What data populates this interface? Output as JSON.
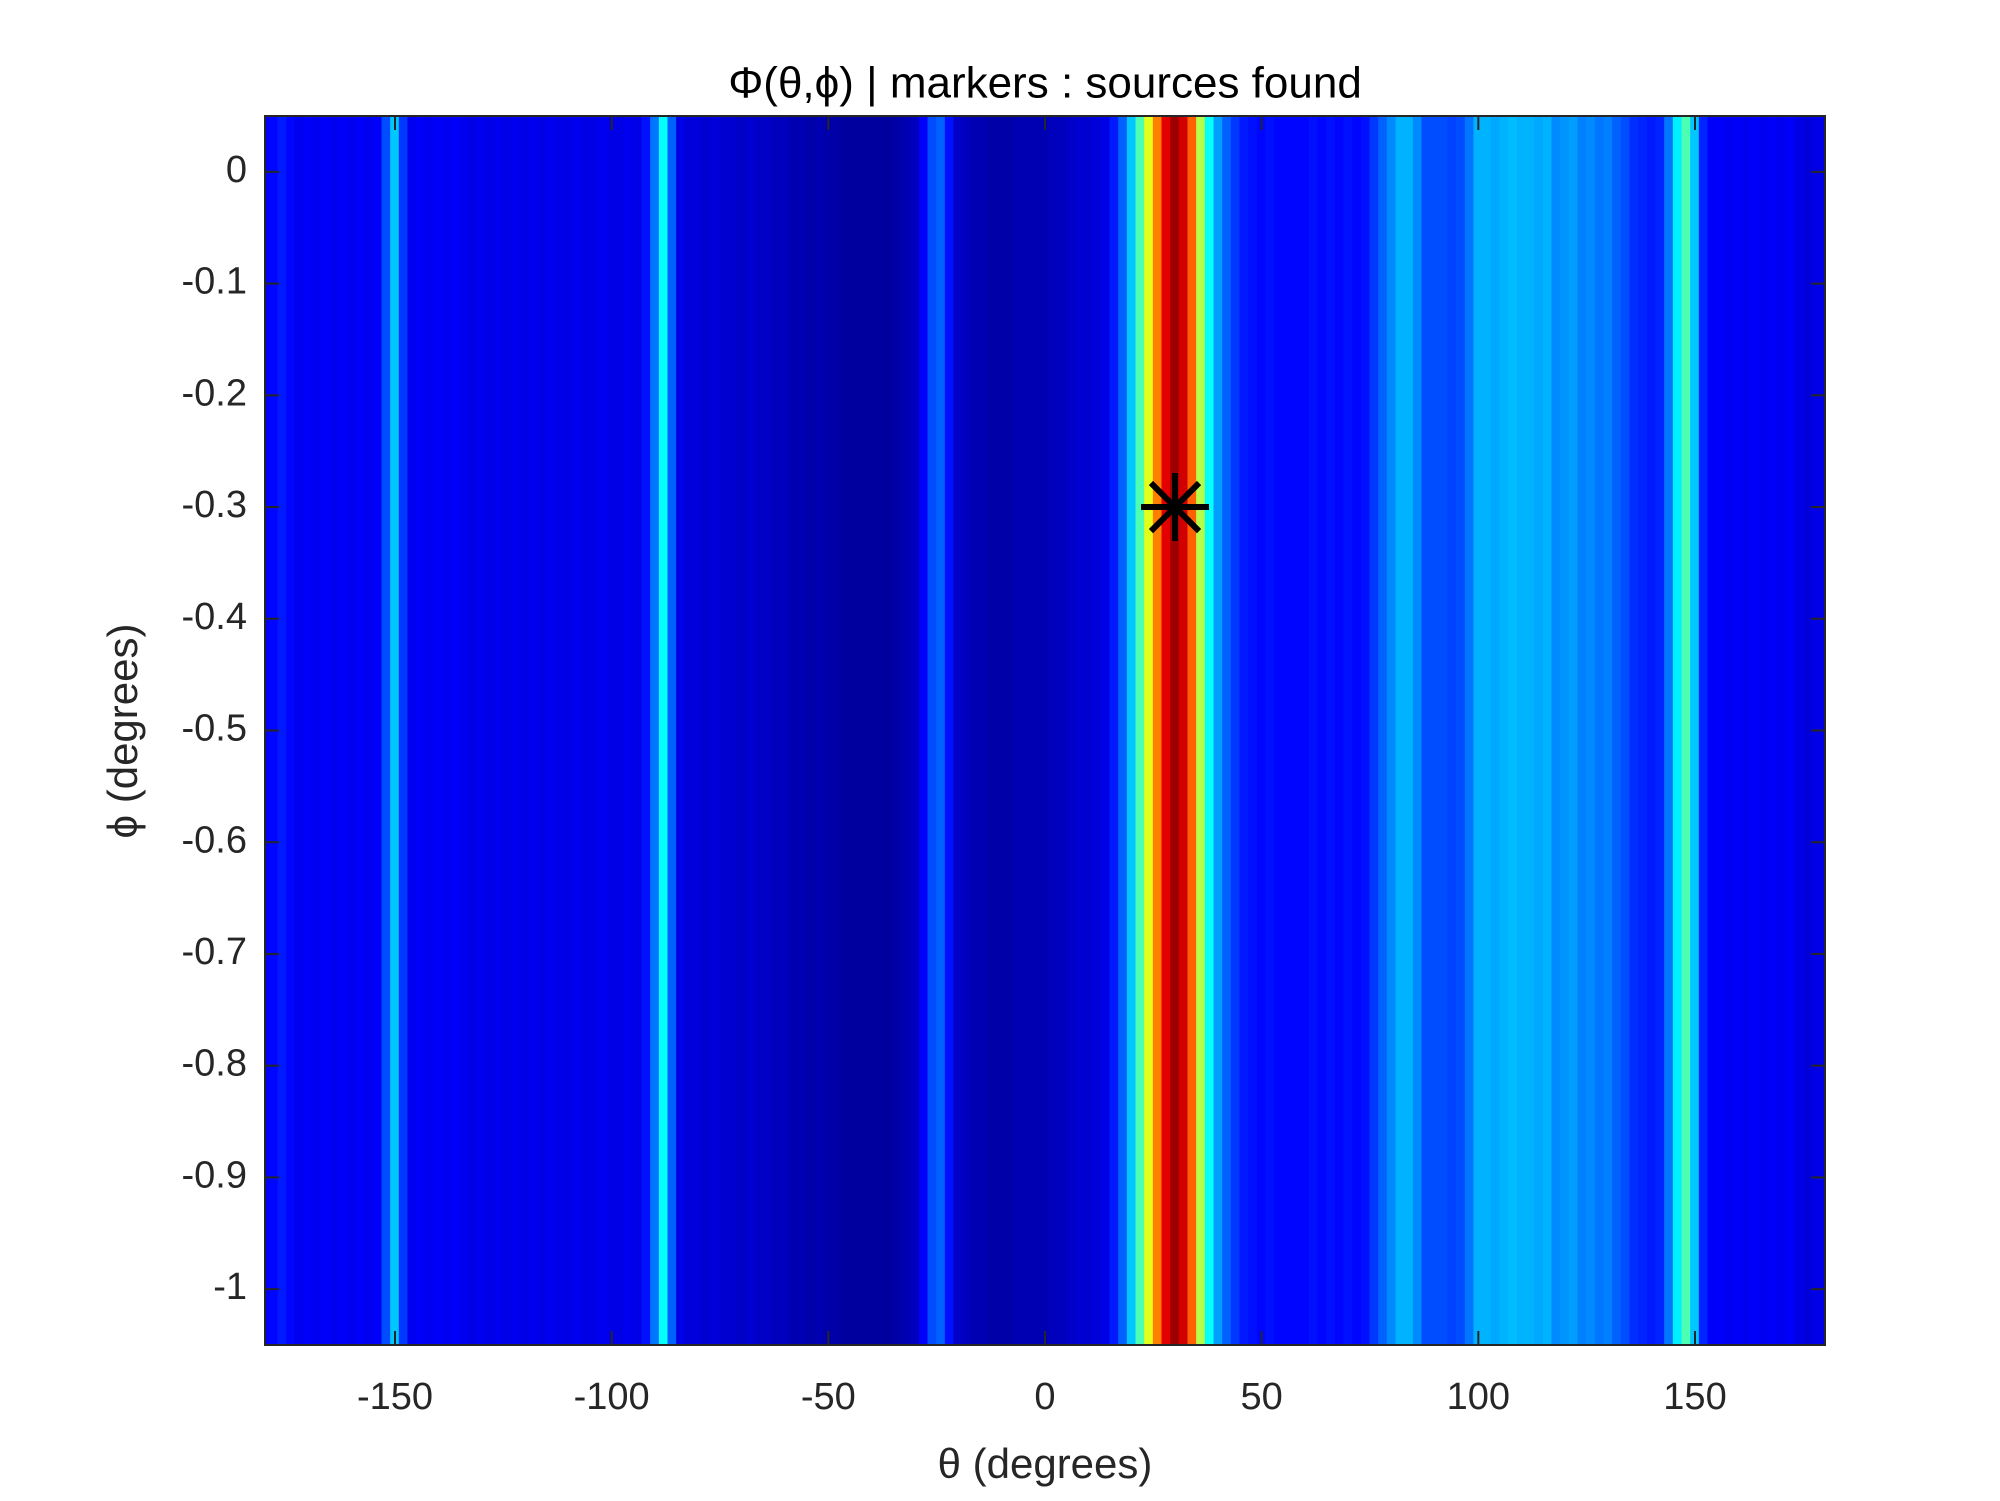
{
  "chart_data": {
    "type": "heatmap",
    "title": "Φ(θ,ϕ)   |  markers : sources found",
    "xlabel": "θ (degrees)",
    "ylabel": "ϕ (degrees)",
    "xlim": [
      -180,
      180
    ],
    "ylim": [
      -1.05,
      0.05
    ],
    "xticks": [
      -150,
      -100,
      -50,
      0,
      50,
      100,
      150
    ],
    "yticks": [
      -1,
      -0.9,
      -0.8,
      -0.7,
      -0.6,
      -0.5,
      -0.4,
      -0.3,
      -0.2,
      -0.1,
      0
    ],
    "colormap": "jet",
    "x": [
      -180,
      -178,
      -176,
      -174,
      -172,
      -170,
      -168,
      -166,
      -164,
      -162,
      -160,
      -158,
      -156,
      -154,
      -152,
      -150,
      -148,
      -146,
      -144,
      -142,
      -140,
      -138,
      -136,
      -134,
      -132,
      -130,
      -128,
      -126,
      -124,
      -122,
      -120,
      -118,
      -116,
      -114,
      -112,
      -110,
      -108,
      -106,
      -104,
      -102,
      -100,
      -98,
      -96,
      -94,
      -92,
      -90,
      -88,
      -86,
      -84,
      -82,
      -80,
      -78,
      -76,
      -74,
      -72,
      -70,
      -68,
      -66,
      -64,
      -62,
      -60,
      -58,
      -56,
      -54,
      -52,
      -50,
      -48,
      -46,
      -44,
      -42,
      -40,
      -38,
      -36,
      -34,
      -32,
      -30,
      -28,
      -26,
      -24,
      -22,
      -20,
      -18,
      -16,
      -14,
      -12,
      -10,
      -8,
      -6,
      -4,
      -2,
      0,
      2,
      4,
      6,
      8,
      10,
      12,
      14,
      16,
      18,
      20,
      22,
      24,
      26,
      28,
      30,
      32,
      34,
      36,
      38,
      40,
      42,
      44,
      46,
      48,
      50,
      52,
      54,
      56,
      58,
      60,
      62,
      64,
      66,
      68,
      70,
      72,
      74,
      76,
      78,
      80,
      82,
      84,
      86,
      88,
      90,
      92,
      94,
      96,
      98,
      100,
      102,
      104,
      106,
      108,
      110,
      112,
      114,
      116,
      118,
      120,
      122,
      124,
      126,
      128,
      130,
      132,
      134,
      136,
      138,
      140,
      142,
      144,
      146,
      148,
      150,
      152,
      154,
      156,
      158,
      160,
      162,
      164,
      166,
      168,
      170,
      172,
      174,
      176,
      178,
      180
    ],
    "values": [
      0.12,
      0.13,
      0.15,
      0.13,
      0.11,
      0.12,
      0.11,
      0.12,
      0.11,
      0.12,
      0.11,
      0.12,
      0.11,
      0.12,
      0.2,
      0.32,
      0.18,
      0.11,
      0.12,
      0.11,
      0.12,
      0.11,
      0.12,
      0.11,
      0.1,
      0.11,
      0.1,
      0.11,
      0.1,
      0.11,
      0.1,
      0.11,
      0.1,
      0.11,
      0.1,
      0.1,
      0.11,
      0.1,
      0.1,
      0.11,
      0.1,
      0.1,
      0.11,
      0.1,
      0.14,
      0.24,
      0.38,
      0.22,
      0.1,
      0.09,
      0.09,
      0.08,
      0.09,
      0.08,
      0.08,
      0.07,
      0.08,
      0.07,
      0.07,
      0.06,
      0.06,
      0.05,
      0.05,
      0.04,
      0.05,
      0.04,
      0.04,
      0.03,
      0.03,
      0.03,
      0.03,
      0.03,
      0.03,
      0.04,
      0.05,
      0.06,
      0.12,
      0.2,
      0.22,
      0.14,
      0.07,
      0.06,
      0.05,
      0.05,
      0.04,
      0.04,
      0.04,
      0.05,
      0.05,
      0.05,
      0.05,
      0.06,
      0.06,
      0.07,
      0.08,
      0.08,
      0.09,
      0.1,
      0.15,
      0.22,
      0.32,
      0.45,
      0.6,
      0.75,
      0.9,
      0.97,
      0.92,
      0.78,
      0.55,
      0.38,
      0.28,
      0.22,
      0.18,
      0.15,
      0.14,
      0.13,
      0.14,
      0.13,
      0.13,
      0.13,
      0.13,
      0.14,
      0.13,
      0.14,
      0.13,
      0.14,
      0.13,
      0.14,
      0.18,
      0.22,
      0.26,
      0.3,
      0.3,
      0.26,
      0.2,
      0.2,
      0.2,
      0.19,
      0.2,
      0.24,
      0.3,
      0.3,
      0.29,
      0.3,
      0.31,
      0.3,
      0.3,
      0.29,
      0.3,
      0.26,
      0.27,
      0.28,
      0.25,
      0.26,
      0.24,
      0.25,
      0.22,
      0.2,
      0.17,
      0.16,
      0.15,
      0.16,
      0.24,
      0.36,
      0.45,
      0.32,
      0.16,
      0.12,
      0.12,
      0.11,
      0.12,
      0.11,
      0.12,
      0.11,
      0.12,
      0.11,
      0.12,
      0.1,
      0.09,
      0.1,
      0.1
    ],
    "markers": {
      "x": [
        30
      ],
      "y": [
        -0.3
      ],
      "color": "#000000"
    }
  }
}
